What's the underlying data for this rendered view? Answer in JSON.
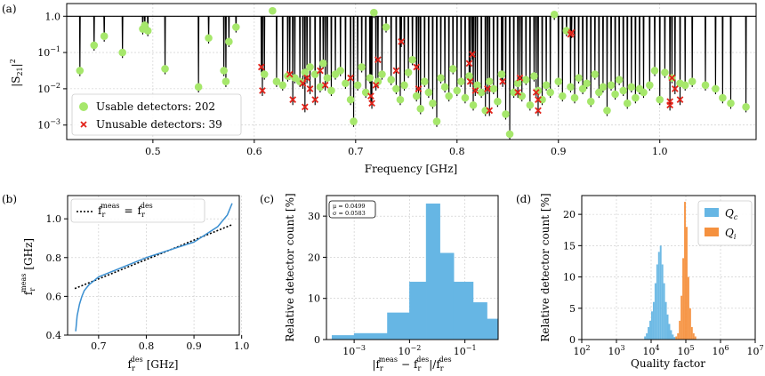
{
  "colors": {
    "usable": "#a6e76b",
    "unusable": "#e2231a",
    "blue": "#66b6e4",
    "blue_line": "#3a8fd1",
    "orange": "#f5913f",
    "trace": "#000000"
  },
  "chart_data": [
    {
      "id": "a",
      "type": "scatter",
      "panel_label": "(a)",
      "xlabel": "Frequency [GHz]",
      "ylabel": "|S21|²",
      "ylabel_main": "|S",
      "ylabel_sub": "21",
      "ylabel_sup": "2",
      "xlim": [
        0.415,
        1.095
      ],
      "ylim_log10": [
        -3.4,
        0.35
      ],
      "xticks": [
        "0.5",
        "0.6",
        "0.7",
        "0.8",
        "0.9",
        "1.0"
      ],
      "xtick_values": [
        0.5,
        0.6,
        0.7,
        0.8,
        0.9,
        1.0
      ],
      "yticks": [
        {
          "base": "10",
          "exp": "−3",
          "value": -3
        },
        {
          "base": "10",
          "exp": "−2",
          "value": -2
        },
        {
          "base": "10",
          "exp": "−1",
          "value": -1
        },
        {
          "base": "1.0",
          "exp": "",
          "value": 0
        }
      ],
      "legend": {
        "position": "lower-left",
        "usable_label": "Usable detectors: 202",
        "unusable_label": "Unusable detectors: 39"
      },
      "usable_points": [
        [
          0.428,
          -1.5
        ],
        [
          0.442,
          -0.8
        ],
        [
          0.452,
          -0.55
        ],
        [
          0.47,
          -1.0
        ],
        [
          0.49,
          -0.35
        ],
        [
          0.492,
          -0.25
        ],
        [
          0.495,
          -0.4
        ],
        [
          0.512,
          -1.45
        ],
        [
          0.545,
          -1.95
        ],
        [
          0.555,
          -0.6
        ],
        [
          0.57,
          -1.5
        ],
        [
          0.572,
          -1.8
        ],
        [
          0.575,
          -0.7
        ],
        [
          0.582,
          -0.3
        ],
        [
          0.61,
          -1.6
        ],
        [
          0.618,
          0.15
        ],
        [
          0.622,
          -1.8
        ],
        [
          0.628,
          -1.9
        ],
        [
          0.633,
          -1.65
        ],
        [
          0.64,
          -1.7
        ],
        [
          0.645,
          -1.8
        ],
        [
          0.65,
          -1.55
        ],
        [
          0.655,
          -1.4
        ],
        [
          0.66,
          -1.6
        ],
        [
          0.665,
          -1.95
        ],
        [
          0.668,
          -1.3
        ],
        [
          0.672,
          -1.7
        ],
        [
          0.676,
          -2.05
        ],
        [
          0.68,
          -1.6
        ],
        [
          0.685,
          -1.5
        ],
        [
          0.69,
          -1.85
        ],
        [
          0.695,
          -2.3
        ],
        [
          0.698,
          -2.9
        ],
        [
          0.702,
          -1.9
        ],
        [
          0.706,
          -1.4
        ],
        [
          0.71,
          -2.1
        ],
        [
          0.714,
          -1.7
        ],
        [
          0.718,
          0.1
        ],
        [
          0.722,
          -1.8
        ],
        [
          0.726,
          -1.6
        ],
        [
          0.73,
          -0.3
        ],
        [
          0.735,
          -1.75
        ],
        [
          0.74,
          -2.0
        ],
        [
          0.744,
          -2.3
        ],
        [
          0.748,
          -1.9
        ],
        [
          0.752,
          -1.55
        ],
        [
          0.756,
          -1.2
        ],
        [
          0.76,
          -2.2
        ],
        [
          0.764,
          -2.55
        ],
        [
          0.768,
          -1.8
        ],
        [
          0.772,
          -2.1
        ],
        [
          0.776,
          -2.4
        ],
        [
          0.78,
          -2.9
        ],
        [
          0.784,
          -1.7
        ],
        [
          0.788,
          -1.95
        ],
        [
          0.792,
          -2.2
        ],
        [
          0.796,
          -1.45
        ],
        [
          0.8,
          -2.05
        ],
        [
          0.804,
          -1.8
        ],
        [
          0.808,
          -2.25
        ],
        [
          0.812,
          -1.65
        ],
        [
          0.816,
          -2.45
        ],
        [
          0.82,
          -1.9
        ],
        [
          0.824,
          -2.1
        ],
        [
          0.828,
          -2.6
        ],
        [
          0.832,
          -1.8
        ],
        [
          0.836,
          -2.0
        ],
        [
          0.84,
          -2.35
        ],
        [
          0.844,
          -1.6
        ],
        [
          0.848,
          -2.7
        ],
        [
          0.852,
          -3.25
        ],
        [
          0.856,
          -2.1
        ],
        [
          0.86,
          -1.85
        ],
        [
          0.864,
          -2.2
        ],
        [
          0.868,
          -1.75
        ],
        [
          0.872,
          -2.45
        ],
        [
          0.876,
          -1.65
        ],
        [
          0.88,
          -2.05
        ],
        [
          0.884,
          -2.3
        ],
        [
          0.888,
          -1.9
        ],
        [
          0.892,
          -2.1
        ],
        [
          0.896,
          0.05
        ],
        [
          0.9,
          -1.8
        ],
        [
          0.904,
          -2.2
        ],
        [
          0.908,
          -0.4
        ],
        [
          0.912,
          -1.95
        ],
        [
          0.916,
          -2.25
        ],
        [
          0.92,
          -1.7
        ],
        [
          0.924,
          -2.0
        ],
        [
          0.928,
          -1.85
        ],
        [
          0.932,
          -2.35
        ],
        [
          0.936,
          -1.6
        ],
        [
          0.94,
          -2.1
        ],
        [
          0.944,
          -1.95
        ],
        [
          0.948,
          -2.6
        ],
        [
          0.952,
          -1.9
        ],
        [
          0.956,
          -2.15
        ],
        [
          0.96,
          -1.75
        ],
        [
          0.964,
          -2.05
        ],
        [
          0.968,
          -2.4
        ],
        [
          0.972,
          -1.95
        ],
        [
          0.976,
          -2.25
        ],
        [
          0.98,
          -2.0
        ],
        [
          0.984,
          -2.1
        ],
        [
          0.99,
          -1.9
        ],
        [
          0.995,
          -1.5
        ],
        [
          1.0,
          -2.3
        ],
        [
          1.005,
          -1.55
        ],
        [
          1.012,
          -1.7
        ],
        [
          1.02,
          -1.85
        ],
        [
          1.025,
          -1.9
        ],
        [
          1.032,
          -1.8
        ],
        [
          1.045,
          -1.9
        ],
        [
          1.055,
          -2.0
        ],
        [
          1.062,
          -2.25
        ],
        [
          1.07,
          -2.4
        ],
        [
          1.085,
          -2.5
        ]
      ],
      "unusable_points": [
        [
          0.607,
          -1.4
        ],
        [
          0.608,
          -2.05
        ],
        [
          0.635,
          -1.6
        ],
        [
          0.638,
          -2.3
        ],
        [
          0.648,
          -1.85
        ],
        [
          0.65,
          -2.5
        ],
        [
          0.652,
          -1.7
        ],
        [
          0.655,
          -2.0
        ],
        [
          0.66,
          -2.3
        ],
        [
          0.665,
          -1.5
        ],
        [
          0.67,
          -1.9
        ],
        [
          0.695,
          -1.7
        ],
        [
          0.715,
          -2.2
        ],
        [
          0.716,
          -2.4
        ],
        [
          0.72,
          -1.9
        ],
        [
          0.722,
          -1.2
        ],
        [
          0.74,
          -1.5
        ],
        [
          0.745,
          -0.7
        ],
        [
          0.76,
          -1.4
        ],
        [
          0.762,
          -2.0
        ],
        [
          0.812,
          -1.3
        ],
        [
          0.813,
          -1.8
        ],
        [
          0.815,
          -1.05
        ],
        [
          0.818,
          -2.05
        ],
        [
          0.83,
          -2.0
        ],
        [
          0.832,
          -2.6
        ],
        [
          0.845,
          -1.8
        ],
        [
          0.86,
          -2.1
        ],
        [
          0.862,
          -1.7
        ],
        [
          0.878,
          -2.1
        ],
        [
          0.88,
          -2.3
        ],
        [
          0.88,
          -2.6
        ],
        [
          0.912,
          -0.5
        ],
        [
          0.913,
          -0.45
        ],
        [
          1.01,
          -2.35
        ],
        [
          1.01,
          -2.45
        ],
        [
          1.012,
          -1.7
        ],
        [
          1.015,
          -2.0
        ],
        [
          1.02,
          -2.3
        ]
      ]
    },
    {
      "id": "b",
      "type": "line",
      "panel_label": "(b)",
      "xlabel": "f_r^des [GHz]",
      "xlabel_main": "f",
      "xlabel_sub": "r",
      "xlabel_sup": "des",
      "xlabel_unit": "[GHz]",
      "ylabel": "f_r^meas [GHz]",
      "ylabel_main": "f",
      "ylabel_sub": "r",
      "ylabel_sup": "meas",
      "ylabel_unit": "[GHz]",
      "xlim": [
        0.635,
        0.995
      ],
      "ylim": [
        0.4,
        1.12
      ],
      "xticks": [
        "0.7",
        "0.8",
        "0.9",
        "1.0"
      ],
      "xtick_values": [
        0.7,
        0.8,
        0.9,
        1.0
      ],
      "yticks": [
        "0.4",
        "0.6",
        "0.8",
        "1.0"
      ],
      "ytick_values": [
        0.4,
        0.6,
        0.8,
        1.0
      ],
      "legend_label": "f_r^meas = f_r^des",
      "legend_main": "f",
      "legend_sub": "r",
      "legend_sup1": "meas",
      "legend_eq": "=",
      "legend_sup2": "des",
      "identity_line": [
        [
          0.65,
          0.64
        ],
        [
          0.98,
          0.97
        ]
      ],
      "series": [
        {
          "name": "measured",
          "x": [
            0.652,
            0.655,
            0.66,
            0.665,
            0.67,
            0.68,
            0.7,
            0.72,
            0.75,
            0.8,
            0.85,
            0.9,
            0.95,
            0.97,
            0.98
          ],
          "y": [
            0.42,
            0.5,
            0.56,
            0.6,
            0.63,
            0.66,
            0.7,
            0.72,
            0.75,
            0.8,
            0.84,
            0.88,
            0.96,
            1.02,
            1.08
          ]
        }
      ]
    },
    {
      "id": "c",
      "type": "bar",
      "panel_label": "(c)",
      "xlabel": "|f_r^meas − f_r^des|/f_r^des",
      "ylabel": "Relative detector count [%]",
      "xlim_log10": [
        -3.5,
        -0.4
      ],
      "ylim": [
        0,
        35
      ],
      "xticks": [
        {
          "base": "10",
          "exp": "−3",
          "value": -3
        },
        {
          "base": "10",
          "exp": "−2",
          "value": -2
        },
        {
          "base": "10",
          "exp": "−1",
          "value": -1
        }
      ],
      "yticks": [
        "0",
        "10",
        "20",
        "30"
      ],
      "ytick_values": [
        0,
        10,
        20,
        30
      ],
      "stats": {
        "mu": "μ = 0.0499",
        "sigma": "σ = 0.0583"
      },
      "bin_edges_log10": [
        -3.4,
        -3.0,
        -2.4,
        -2.0,
        -1.7,
        -1.45,
        -1.2,
        -0.85,
        -0.6,
        -0.4
      ],
      "values": [
        1,
        1.5,
        6.5,
        14,
        33,
        21,
        14,
        9,
        5
      ]
    },
    {
      "id": "d",
      "type": "bar",
      "panel_label": "(d)",
      "xlabel": "Quality factor",
      "ylabel": "Relative detector count [%]",
      "xlim_log10": [
        2,
        7
      ],
      "ylim": [
        0,
        23
      ],
      "xticks": [
        {
          "base": "10",
          "exp": "2",
          "value": 2
        },
        {
          "base": "10",
          "exp": "3",
          "value": 3
        },
        {
          "base": "10",
          "exp": "4",
          "value": 4
        },
        {
          "base": "10",
          "exp": "5",
          "value": 5
        },
        {
          "base": "10",
          "exp": "6",
          "value": 6
        },
        {
          "base": "10",
          "exp": "7",
          "value": 7
        }
      ],
      "yticks": [
        "0",
        "5",
        "10",
        "15",
        "20"
      ],
      "ytick_values": [
        0,
        5,
        10,
        15,
        20
      ],
      "legend": [
        {
          "name": "Qc",
          "main": "Q",
          "sub": "c"
        },
        {
          "name": "Qi",
          "main": "Q",
          "sub": "i"
        }
      ],
      "series": [
        {
          "name": "Qc",
          "bin_start_log10": 3.8,
          "bin_width_log10": 0.05,
          "values": [
            0.5,
            1,
            2,
            3,
            4.5,
            6,
            9,
            12,
            14,
            15,
            12,
            9,
            6,
            4,
            2.5,
            1.5,
            0.8,
            0.4
          ]
        },
        {
          "name": "Qi",
          "bin_start_log10": 4.7,
          "bin_width_log10": 0.05,
          "values": [
            0.5,
            1,
            3,
            7,
            13,
            22,
            18,
            10,
            5,
            2,
            1,
            0.5
          ]
        }
      ]
    }
  ]
}
